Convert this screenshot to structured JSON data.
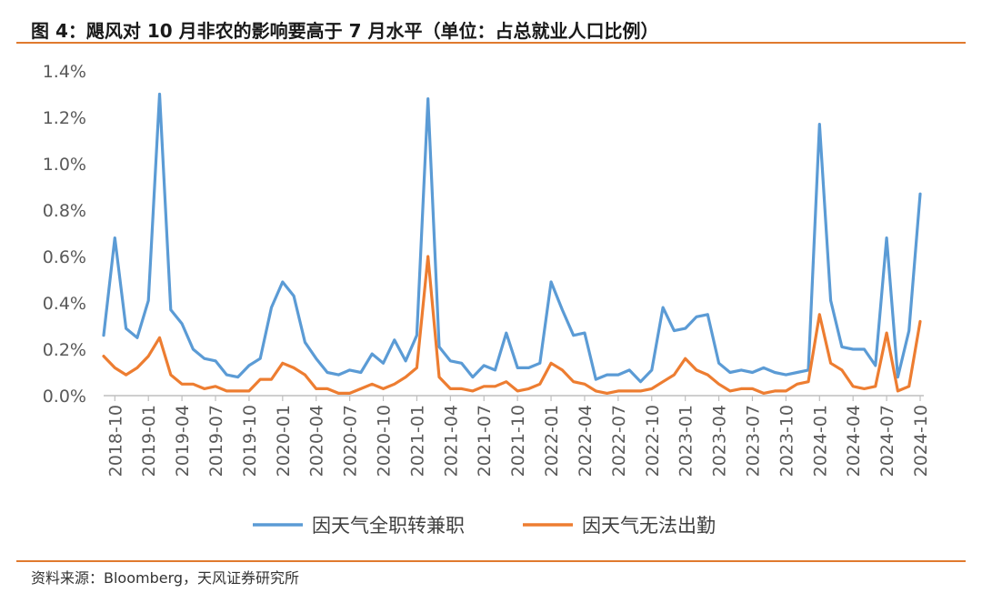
{
  "header": {
    "title": "图 4：飓风对 10 月非农的影响要高于 7 月水平（单位：占总就业人口比例）"
  },
  "footer": {
    "source": "资料来源：Bloomberg，天风证券研究所"
  },
  "colors": {
    "series1": "#5b9bd5",
    "series2": "#ed7d31",
    "axis": "#bfbfbf",
    "accent": "#e07a2e"
  },
  "chart_data": {
    "type": "line",
    "title": "图 4：飓风对 10 月非农的影响要高于 7 月水平（单位：占总就业人口比例）",
    "y_ticks": [
      "0.0%",
      "0.2%",
      "0.4%",
      "0.6%",
      "0.8%",
      "1.0%",
      "1.2%",
      "1.4%"
    ],
    "ylim": [
      0,
      1.4
    ],
    "x_tick_labels": [
      "2018-10",
      "2019-01",
      "2019-04",
      "2019-07",
      "2019-10",
      "2020-01",
      "2020-04",
      "2020-07",
      "2020-10",
      "2021-01",
      "2021-04",
      "2021-07",
      "2021-10",
      "2022-01",
      "2022-04",
      "2022-07",
      "2022-10",
      "2023-01",
      "2023-04",
      "2023-07",
      "2023-10",
      "2024-01",
      "2024-04",
      "2024-07",
      "2024-10"
    ],
    "x": [
      "2018-09",
      "2018-10",
      "2018-11",
      "2018-12",
      "2019-01",
      "2019-02",
      "2019-03",
      "2019-04",
      "2019-05",
      "2019-06",
      "2019-07",
      "2019-08",
      "2019-09",
      "2019-10",
      "2019-11",
      "2019-12",
      "2020-01",
      "2020-02",
      "2020-03",
      "2020-04",
      "2020-05",
      "2020-06",
      "2020-07",
      "2020-08",
      "2020-09",
      "2020-10",
      "2020-11",
      "2020-12",
      "2021-01",
      "2021-02",
      "2021-03",
      "2021-04",
      "2021-05",
      "2021-06",
      "2021-07",
      "2021-08",
      "2021-09",
      "2021-10",
      "2021-11",
      "2021-12",
      "2022-01",
      "2022-02",
      "2022-03",
      "2022-04",
      "2022-05",
      "2022-06",
      "2022-07",
      "2022-08",
      "2022-09",
      "2022-10",
      "2022-11",
      "2022-12",
      "2023-01",
      "2023-02",
      "2023-03",
      "2023-04",
      "2023-05",
      "2023-06",
      "2023-07",
      "2023-08",
      "2023-09",
      "2023-10",
      "2023-11",
      "2023-12",
      "2024-01",
      "2024-02",
      "2024-03",
      "2024-04",
      "2024-05",
      "2024-06",
      "2024-07",
      "2024-08",
      "2024-09",
      "2024-10"
    ],
    "series": [
      {
        "name": "因天气全职转兼职",
        "values": [
          0.26,
          0.68,
          0.29,
          0.25,
          0.41,
          1.3,
          0.37,
          0.31,
          0.2,
          0.16,
          0.15,
          0.09,
          0.08,
          0.13,
          0.16,
          0.38,
          0.49,
          0.43,
          0.23,
          0.16,
          0.1,
          0.09,
          0.11,
          0.1,
          0.18,
          0.14,
          0.24,
          0.15,
          0.26,
          1.28,
          0.21,
          0.15,
          0.14,
          0.08,
          0.13,
          0.11,
          0.27,
          0.12,
          0.12,
          0.14,
          0.49,
          0.37,
          0.26,
          0.27,
          0.07,
          0.09,
          0.09,
          0.11,
          0.06,
          0.11,
          0.38,
          0.28,
          0.29,
          0.34,
          0.35,
          0.14,
          0.1,
          0.11,
          0.1,
          0.12,
          0.1,
          0.09,
          0.1,
          0.11,
          1.17,
          0.41,
          0.21,
          0.2,
          0.2,
          0.13,
          0.68,
          0.08,
          0.28,
          0.87
        ]
      },
      {
        "name": "因天气无法出勤",
        "values": [
          0.17,
          0.12,
          0.09,
          0.12,
          0.17,
          0.25,
          0.09,
          0.05,
          0.05,
          0.03,
          0.04,
          0.02,
          0.02,
          0.02,
          0.07,
          0.07,
          0.14,
          0.12,
          0.09,
          0.03,
          0.03,
          0.01,
          0.01,
          0.03,
          0.05,
          0.03,
          0.05,
          0.08,
          0.12,
          0.6,
          0.08,
          0.03,
          0.03,
          0.02,
          0.04,
          0.04,
          0.06,
          0.02,
          0.03,
          0.05,
          0.14,
          0.11,
          0.06,
          0.05,
          0.02,
          0.01,
          0.02,
          0.02,
          0.02,
          0.03,
          0.06,
          0.09,
          0.16,
          0.11,
          0.09,
          0.05,
          0.02,
          0.03,
          0.03,
          0.01,
          0.02,
          0.02,
          0.05,
          0.06,
          0.35,
          0.14,
          0.11,
          0.04,
          0.03,
          0.04,
          0.27,
          0.02,
          0.04,
          0.32
        ]
      }
    ],
    "legend_position": "bottom",
    "grid": false
  }
}
